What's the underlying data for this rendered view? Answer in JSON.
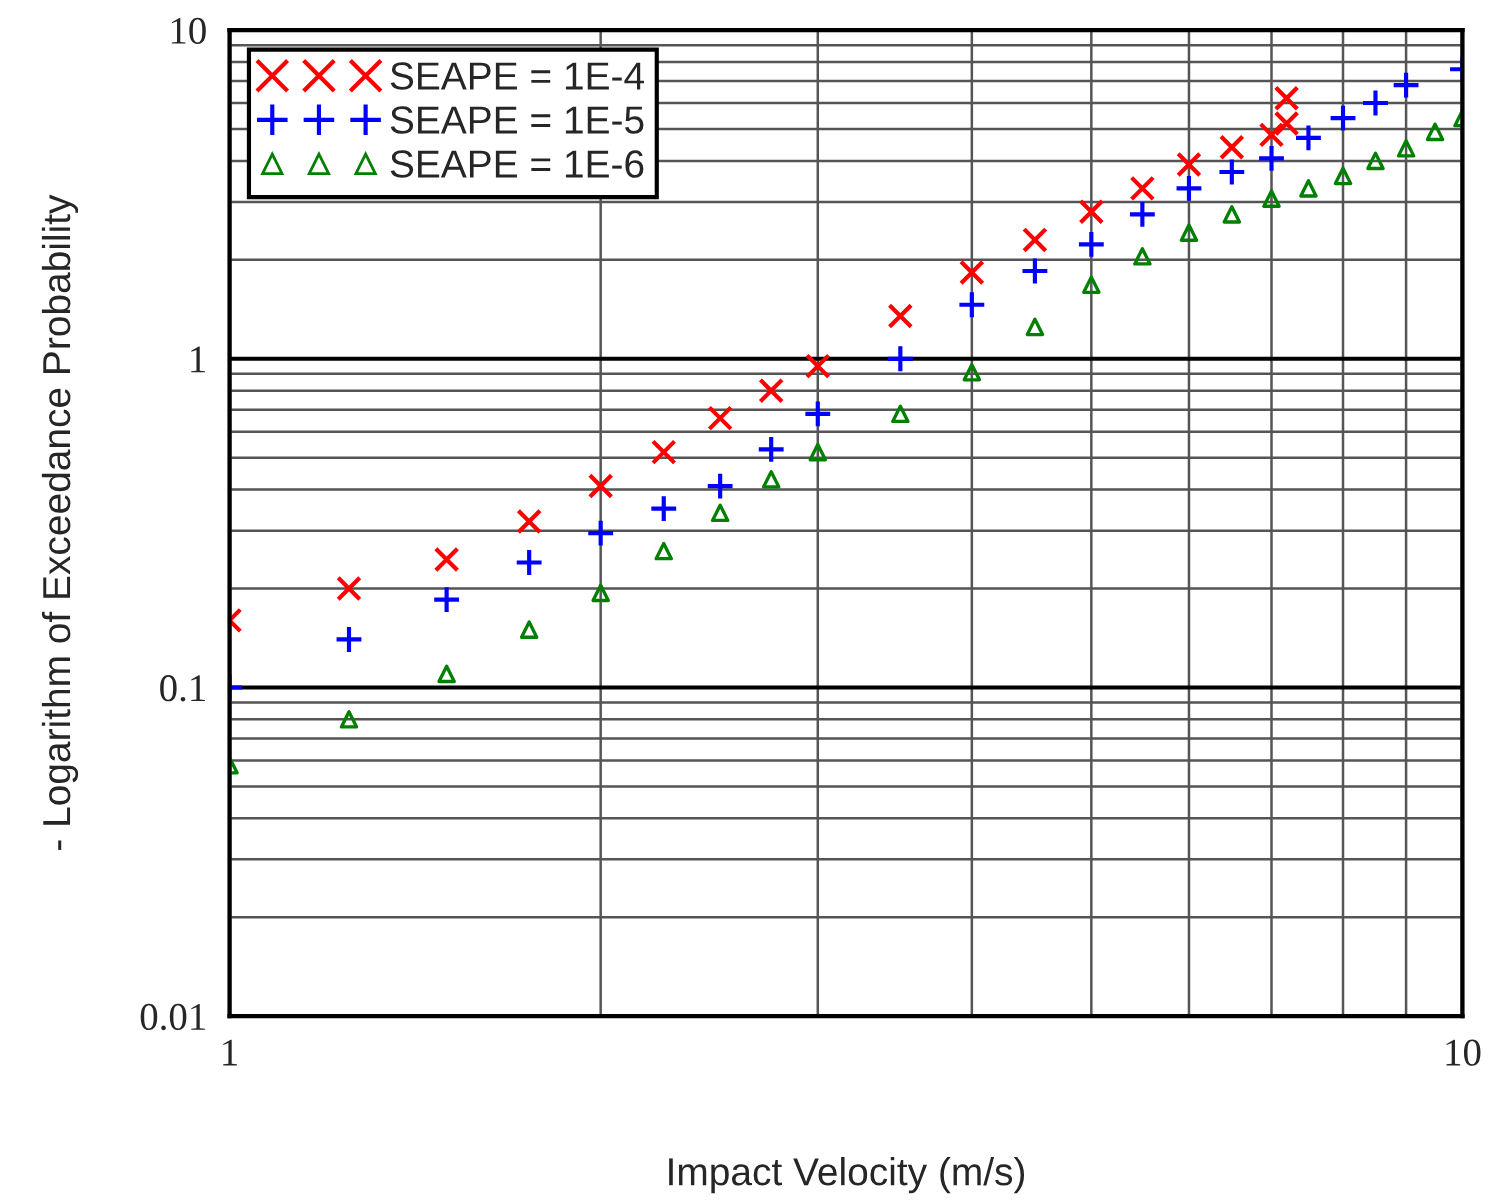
{
  "chart_data": {
    "type": "scatter",
    "xlabel": "Impact Velocity (m/s)",
    "ylabel": "- Logarithm of Exceedance Probability",
    "log": "xy",
    "xlim": [
      1,
      10
    ],
    "ylim": [
      0.01,
      10
    ],
    "xticks": [
      1,
      10
    ],
    "yticks": [
      0.01,
      0.1,
      1,
      10
    ],
    "grid": true,
    "legend": "top left",
    "series": [
      {
        "name": "SEAPE = 1E-4",
        "color": "#ff0000",
        "marker": "cross",
        "x": [
          1,
          1.25,
          1.5,
          1.75,
          2,
          2.25,
          2.5,
          2.75,
          3,
          3.5,
          4,
          4.5,
          5,
          5.5,
          6,
          6.5,
          7,
          7.2,
          7.2
        ],
        "values": [
          0.16,
          0.2,
          0.245,
          0.32,
          0.41,
          0.52,
          0.66,
          0.8,
          0.95,
          1.35,
          1.83,
          2.3,
          2.8,
          3.3,
          3.9,
          4.4,
          4.8,
          5.2,
          6.2
        ]
      },
      {
        "name": "SEAPE = 1E-5",
        "color": "#0000ff",
        "marker": "plus",
        "x": [
          1,
          1.25,
          1.5,
          1.75,
          2,
          2.25,
          2.5,
          2.75,
          3,
          3.5,
          4,
          4.5,
          5,
          5.5,
          6,
          6.5,
          7,
          7.5,
          8,
          8.5,
          9,
          10
        ],
        "values": [
          0.1,
          0.14,
          0.185,
          0.24,
          0.295,
          0.35,
          0.41,
          0.53,
          0.68,
          1.0,
          1.46,
          1.85,
          2.23,
          2.75,
          3.3,
          3.7,
          4.07,
          4.7,
          5.4,
          6.0,
          6.8,
          7.6
        ]
      },
      {
        "name": "SEAPE = 1E-6",
        "color": "#008000",
        "marker": "triangle",
        "x": [
          1,
          1.25,
          1.5,
          1.75,
          2,
          2.25,
          2.5,
          2.75,
          3,
          3.5,
          4,
          4.5,
          5,
          5.5,
          6,
          6.5,
          7,
          7.5,
          8,
          8.5,
          9,
          9.5,
          10
        ],
        "values": [
          0.058,
          0.08,
          0.11,
          0.15,
          0.194,
          0.26,
          0.34,
          0.43,
          0.52,
          0.68,
          0.91,
          1.25,
          1.68,
          2.05,
          2.42,
          2.75,
          3.07,
          3.3,
          3.6,
          4.0,
          4.37,
          4.9,
          5.4
        ]
      }
    ]
  }
}
